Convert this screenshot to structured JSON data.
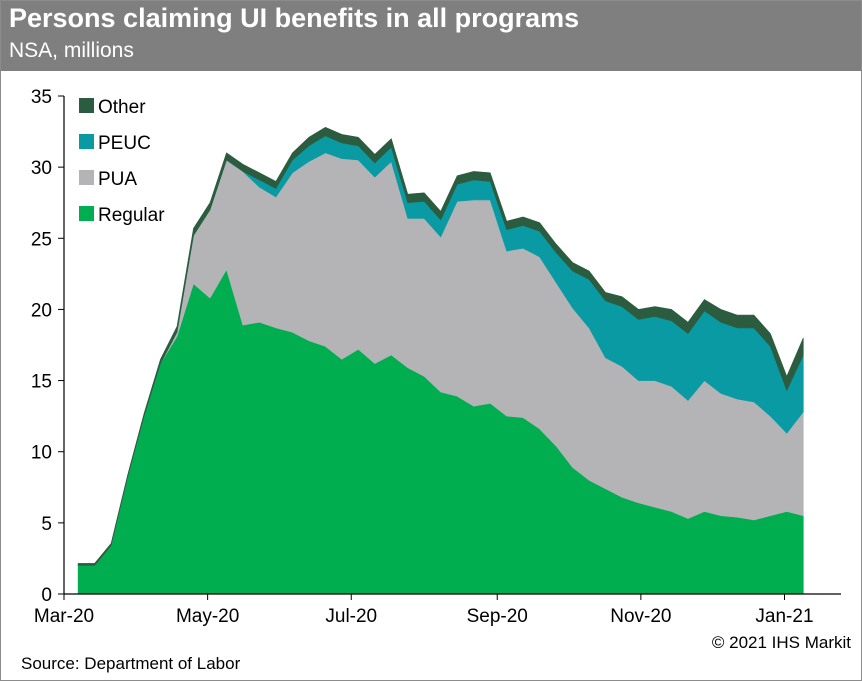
{
  "title": "Persons claiming UI benefits in all programs",
  "subtitle": "NSA, millions",
  "source": "Source: Department of Labor",
  "copyright": "© 2021 IHS Markit",
  "chart_data": {
    "type": "area",
    "stacked": true,
    "ylim": [
      0,
      35
    ],
    "yticks": [
      0,
      5,
      10,
      15,
      20,
      25,
      30,
      35
    ],
    "xlim": [
      "2020-03-01",
      "2021-01-25"
    ],
    "xticks": [
      {
        "label": "Mar-20",
        "date": "2020-03-01"
      },
      {
        "label": "May-20",
        "date": "2020-05-01"
      },
      {
        "label": "Jul-20",
        "date": "2020-07-01"
      },
      {
        "label": "Sep-20",
        "date": "2020-09-01"
      },
      {
        "label": "Nov-20",
        "date": "2020-11-01"
      },
      {
        "label": "Jan-21",
        "date": "2021-01-01"
      }
    ],
    "legend_position": "top-left",
    "grid": false,
    "x": [
      "2020-03-07",
      "2020-03-14",
      "2020-03-21",
      "2020-03-28",
      "2020-04-04",
      "2020-04-11",
      "2020-04-18",
      "2020-04-25",
      "2020-05-02",
      "2020-05-09",
      "2020-05-16",
      "2020-05-23",
      "2020-05-30",
      "2020-06-06",
      "2020-06-13",
      "2020-06-20",
      "2020-06-27",
      "2020-07-04",
      "2020-07-11",
      "2020-07-18",
      "2020-07-25",
      "2020-08-01",
      "2020-08-08",
      "2020-08-15",
      "2020-08-22",
      "2020-08-29",
      "2020-09-05",
      "2020-09-12",
      "2020-09-19",
      "2020-09-26",
      "2020-10-03",
      "2020-10-10",
      "2020-10-17",
      "2020-10-24",
      "2020-10-31",
      "2020-11-07",
      "2020-11-14",
      "2020-11-21",
      "2020-11-28",
      "2020-12-05",
      "2020-12-12",
      "2020-12-19",
      "2020-12-26",
      "2021-01-02",
      "2021-01-09"
    ],
    "series": [
      {
        "name": "Regular",
        "color": "#00ad4f",
        "values": [
          2.0,
          2.0,
          3.4,
          8.2,
          12.5,
          16.2,
          18.1,
          21.8,
          20.8,
          22.8,
          18.9,
          19.1,
          18.7,
          18.4,
          17.8,
          17.4,
          16.5,
          17.2,
          16.2,
          16.8,
          15.9,
          15.3,
          14.2,
          13.9,
          13.2,
          13.4,
          12.5,
          12.4,
          11.6,
          10.4,
          8.9,
          8.0,
          7.4,
          6.8,
          6.4,
          6.1,
          5.8,
          5.3,
          5.8,
          5.5,
          5.4,
          5.2,
          5.5,
          5.8,
          5.5
        ]
      },
      {
        "name": "PUA",
        "color": "#b4b4b7",
        "values": [
          0.0,
          0.0,
          0.0,
          0.0,
          0.0,
          0.0,
          0.3,
          3.4,
          6.2,
          7.7,
          10.8,
          9.5,
          9.2,
          11.2,
          12.6,
          13.6,
          14.1,
          13.3,
          13.1,
          13.6,
          10.5,
          11.1,
          10.9,
          13.7,
          14.5,
          14.3,
          11.6,
          11.9,
          12.1,
          11.5,
          11.2,
          10.7,
          9.2,
          9.2,
          8.6,
          8.9,
          8.8,
          8.3,
          9.2,
          8.6,
          8.3,
          8.3,
          7.0,
          5.5,
          7.3
        ]
      },
      {
        "name": "PEUC",
        "color": "#0a9aa3",
        "values": [
          0.0,
          0.0,
          0.0,
          0.0,
          0.0,
          0.0,
          0.0,
          0.0,
          0.0,
          0.0,
          0.0,
          0.5,
          0.6,
          0.9,
          1.1,
          1.2,
          1.1,
          1.0,
          1.0,
          1.0,
          1.1,
          1.2,
          1.2,
          1.2,
          1.4,
          1.3,
          1.5,
          1.6,
          1.8,
          2.1,
          2.6,
          3.4,
          4.0,
          4.2,
          4.3,
          4.5,
          4.6,
          4.7,
          4.9,
          5.0,
          5.0,
          5.2,
          4.9,
          3.0,
          4.0
        ]
      },
      {
        "name": "Other",
        "color": "#2c5c3f",
        "values": [
          0.15,
          0.15,
          0.15,
          0.15,
          0.2,
          0.3,
          0.4,
          0.5,
          0.5,
          0.5,
          0.5,
          0.5,
          0.5,
          0.5,
          0.6,
          0.6,
          0.6,
          0.6,
          0.6,
          0.6,
          0.6,
          0.6,
          0.6,
          0.6,
          0.6,
          0.6,
          0.6,
          0.6,
          0.6,
          0.6,
          0.6,
          0.6,
          0.6,
          0.7,
          0.7,
          0.7,
          0.8,
          0.8,
          0.8,
          0.9,
          0.9,
          0.9,
          0.9,
          1.0,
          1.2
        ]
      }
    ]
  }
}
